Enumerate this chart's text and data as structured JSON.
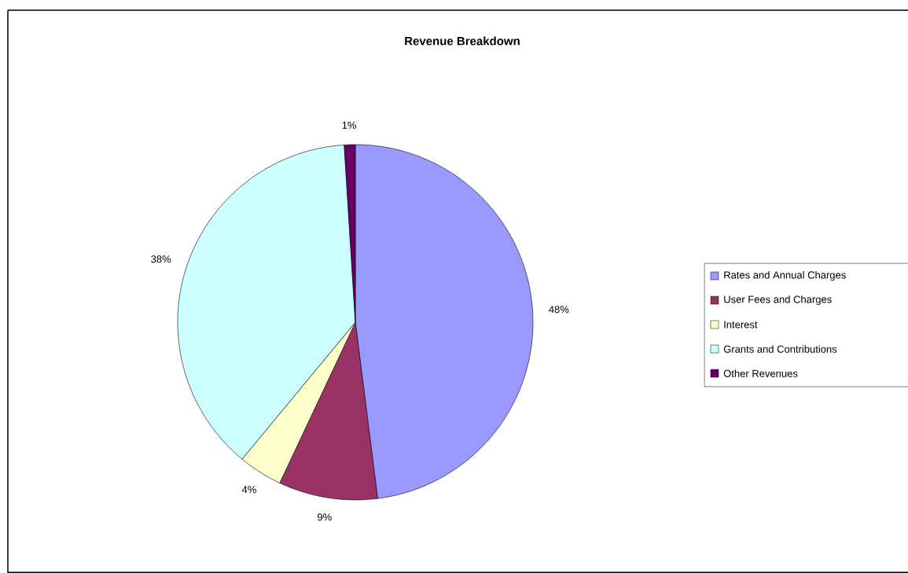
{
  "chart_data": {
    "type": "pie",
    "title": "Revenue Breakdown",
    "categories": [
      "Rates and Annual Charges",
      "User Fees and Charges",
      "Interest",
      "Grants and Contributions",
      "Other Revenues"
    ],
    "values": [
      48,
      9,
      4,
      38,
      1
    ],
    "colors": [
      "#9999ff",
      "#993366",
      "#ffffcc",
      "#ccffff",
      "#660066"
    ],
    "value_labels": [
      "48%",
      "9%",
      "4%",
      "38%",
      "1%"
    ],
    "legend": "right"
  }
}
